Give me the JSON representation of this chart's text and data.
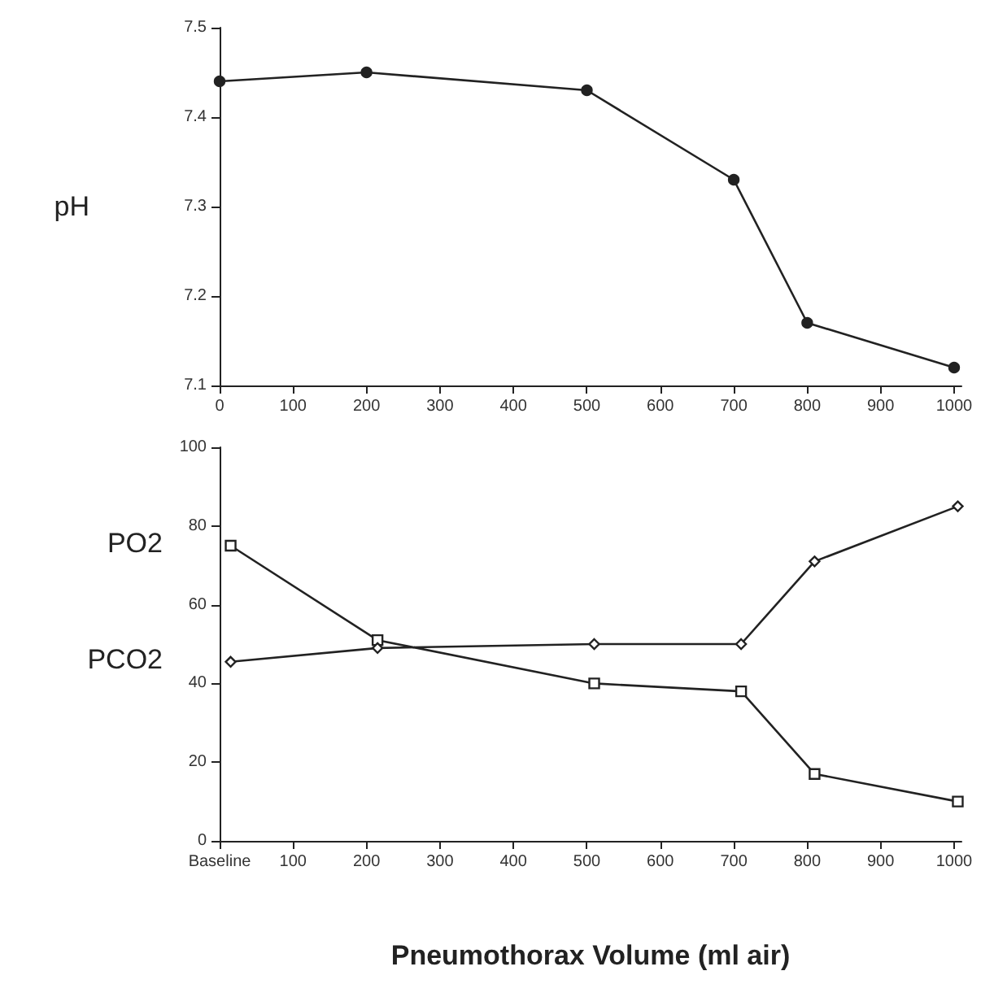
{
  "chart_data": [
    {
      "type": "line",
      "ylabel": "pH",
      "x": [
        0,
        200,
        500,
        700,
        800,
        1000
      ],
      "series": [
        {
          "color": "#222222",
          "marker": "circle",
          "values": [
            7.44,
            7.45,
            7.43,
            7.33,
            7.17,
            7.12
          ]
        }
      ],
      "xlim": [
        0,
        1010
      ],
      "xticks": [
        0,
        100,
        200,
        300,
        400,
        500,
        600,
        700,
        800,
        900,
        1000
      ],
      "ylim": [
        7.1,
        7.5
      ],
      "yticks": [
        7.1,
        7.2,
        7.3,
        7.4,
        7.5
      ],
      "line_style": "solid",
      "grid": false,
      "legend": false
    },
    {
      "type": "line",
      "xlabel": "Pneumothorax Volume (ml air)",
      "x": [
        15,
        215,
        510,
        710,
        810,
        1005
      ],
      "series": [
        {
          "name": "PO2",
          "color": "#222222",
          "marker": "square",
          "values": [
            75,
            51,
            40,
            38,
            17,
            10
          ]
        },
        {
          "name": "PCO2",
          "color": "#222222",
          "marker": "diamond",
          "values": [
            45.5,
            49,
            50,
            50,
            71,
            85
          ]
        }
      ],
      "xlim": [
        0,
        1010
      ],
      "xticks": [
        {
          "value": 0,
          "label": "Baseline"
        },
        100,
        200,
        300,
        400,
        500,
        600,
        700,
        800,
        900,
        1000
      ],
      "ylim": [
        0,
        100
      ],
      "yticks": [
        0,
        20,
        40,
        60,
        80,
        100
      ],
      "line_style": "solid",
      "grid": false,
      "legend": false
    }
  ]
}
